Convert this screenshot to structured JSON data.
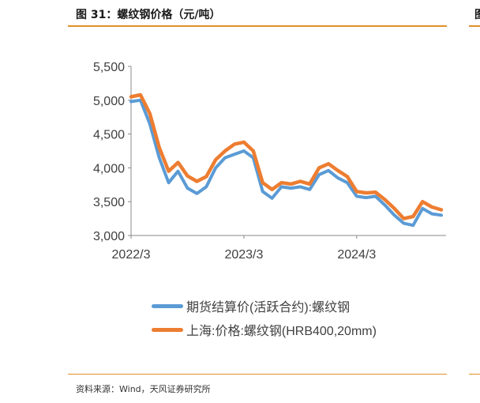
{
  "header": {
    "title": "图 31：螺纹钢价格（元/吨）",
    "right_fragment": "图"
  },
  "footer": {
    "source": "资料来源：Wind，天风证券研究所"
  },
  "colors": {
    "futures": "#5b9bd5",
    "spot": "#ed7d31",
    "axis": "#888888",
    "accent_rule": "#e0902c"
  },
  "chart_data": {
    "type": "line",
    "title": "",
    "xlabel": "",
    "ylabel": "",
    "ylim": [
      3000,
      5500
    ],
    "yticks": [
      "3,000",
      "3,500",
      "4,000",
      "4,500",
      "5,000",
      "5,500"
    ],
    "yticks_values": [
      3000,
      3500,
      4000,
      4500,
      5000,
      5500
    ],
    "xticks": [
      "2022/3",
      "2023/3",
      "2024/3"
    ],
    "xlim": [
      "2022/3",
      "2024/12"
    ],
    "grid": false,
    "legend_position": "bottom",
    "series": [
      {
        "name": "期货结算价(活跃合约):螺纹钢",
        "x": [
          "2022/3",
          "2022/4",
          "2022/5",
          "2022/6",
          "2022/7",
          "2022/8",
          "2022/9",
          "2022/10",
          "2022/11",
          "2022/12",
          "2023/1",
          "2023/2",
          "2023/3",
          "2023/4",
          "2023/5",
          "2023/6",
          "2023/7",
          "2023/8",
          "2023/9",
          "2023/10",
          "2023/11",
          "2023/12",
          "2024/1",
          "2024/2",
          "2024/3",
          "2024/4",
          "2024/5",
          "2024/6",
          "2024/7",
          "2024/8",
          "2024/9",
          "2024/10",
          "2024/11",
          "2024/12"
        ],
        "values": [
          4980,
          5000,
          4650,
          4150,
          3780,
          3950,
          3700,
          3620,
          3720,
          4000,
          4150,
          4200,
          4250,
          4150,
          3650,
          3550,
          3720,
          3700,
          3720,
          3680,
          3900,
          3960,
          3850,
          3780,
          3580,
          3560,
          3580,
          3450,
          3300,
          3180,
          3150,
          3400,
          3320,
          3300
        ]
      },
      {
        "name": "上海:价格:螺纹钢(HRB400,20mm)",
        "x": [
          "2022/3",
          "2022/4",
          "2022/5",
          "2022/6",
          "2022/7",
          "2022/8",
          "2022/9",
          "2022/10",
          "2022/11",
          "2022/12",
          "2023/1",
          "2023/2",
          "2023/3",
          "2023/4",
          "2023/5",
          "2023/6",
          "2023/7",
          "2023/8",
          "2023/9",
          "2023/10",
          "2023/11",
          "2023/12",
          "2024/1",
          "2024/2",
          "2024/3",
          "2024/4",
          "2024/5",
          "2024/6",
          "2024/7",
          "2024/8",
          "2024/9",
          "2024/10",
          "2024/11",
          "2024/12"
        ],
        "values": [
          5050,
          5080,
          4800,
          4300,
          3950,
          4080,
          3880,
          3800,
          3870,
          4120,
          4250,
          4350,
          4380,
          4250,
          3780,
          3680,
          3780,
          3760,
          3800,
          3760,
          4000,
          4060,
          3960,
          3870,
          3650,
          3630,
          3640,
          3530,
          3400,
          3250,
          3280,
          3500,
          3420,
          3380
        ]
      }
    ]
  }
}
